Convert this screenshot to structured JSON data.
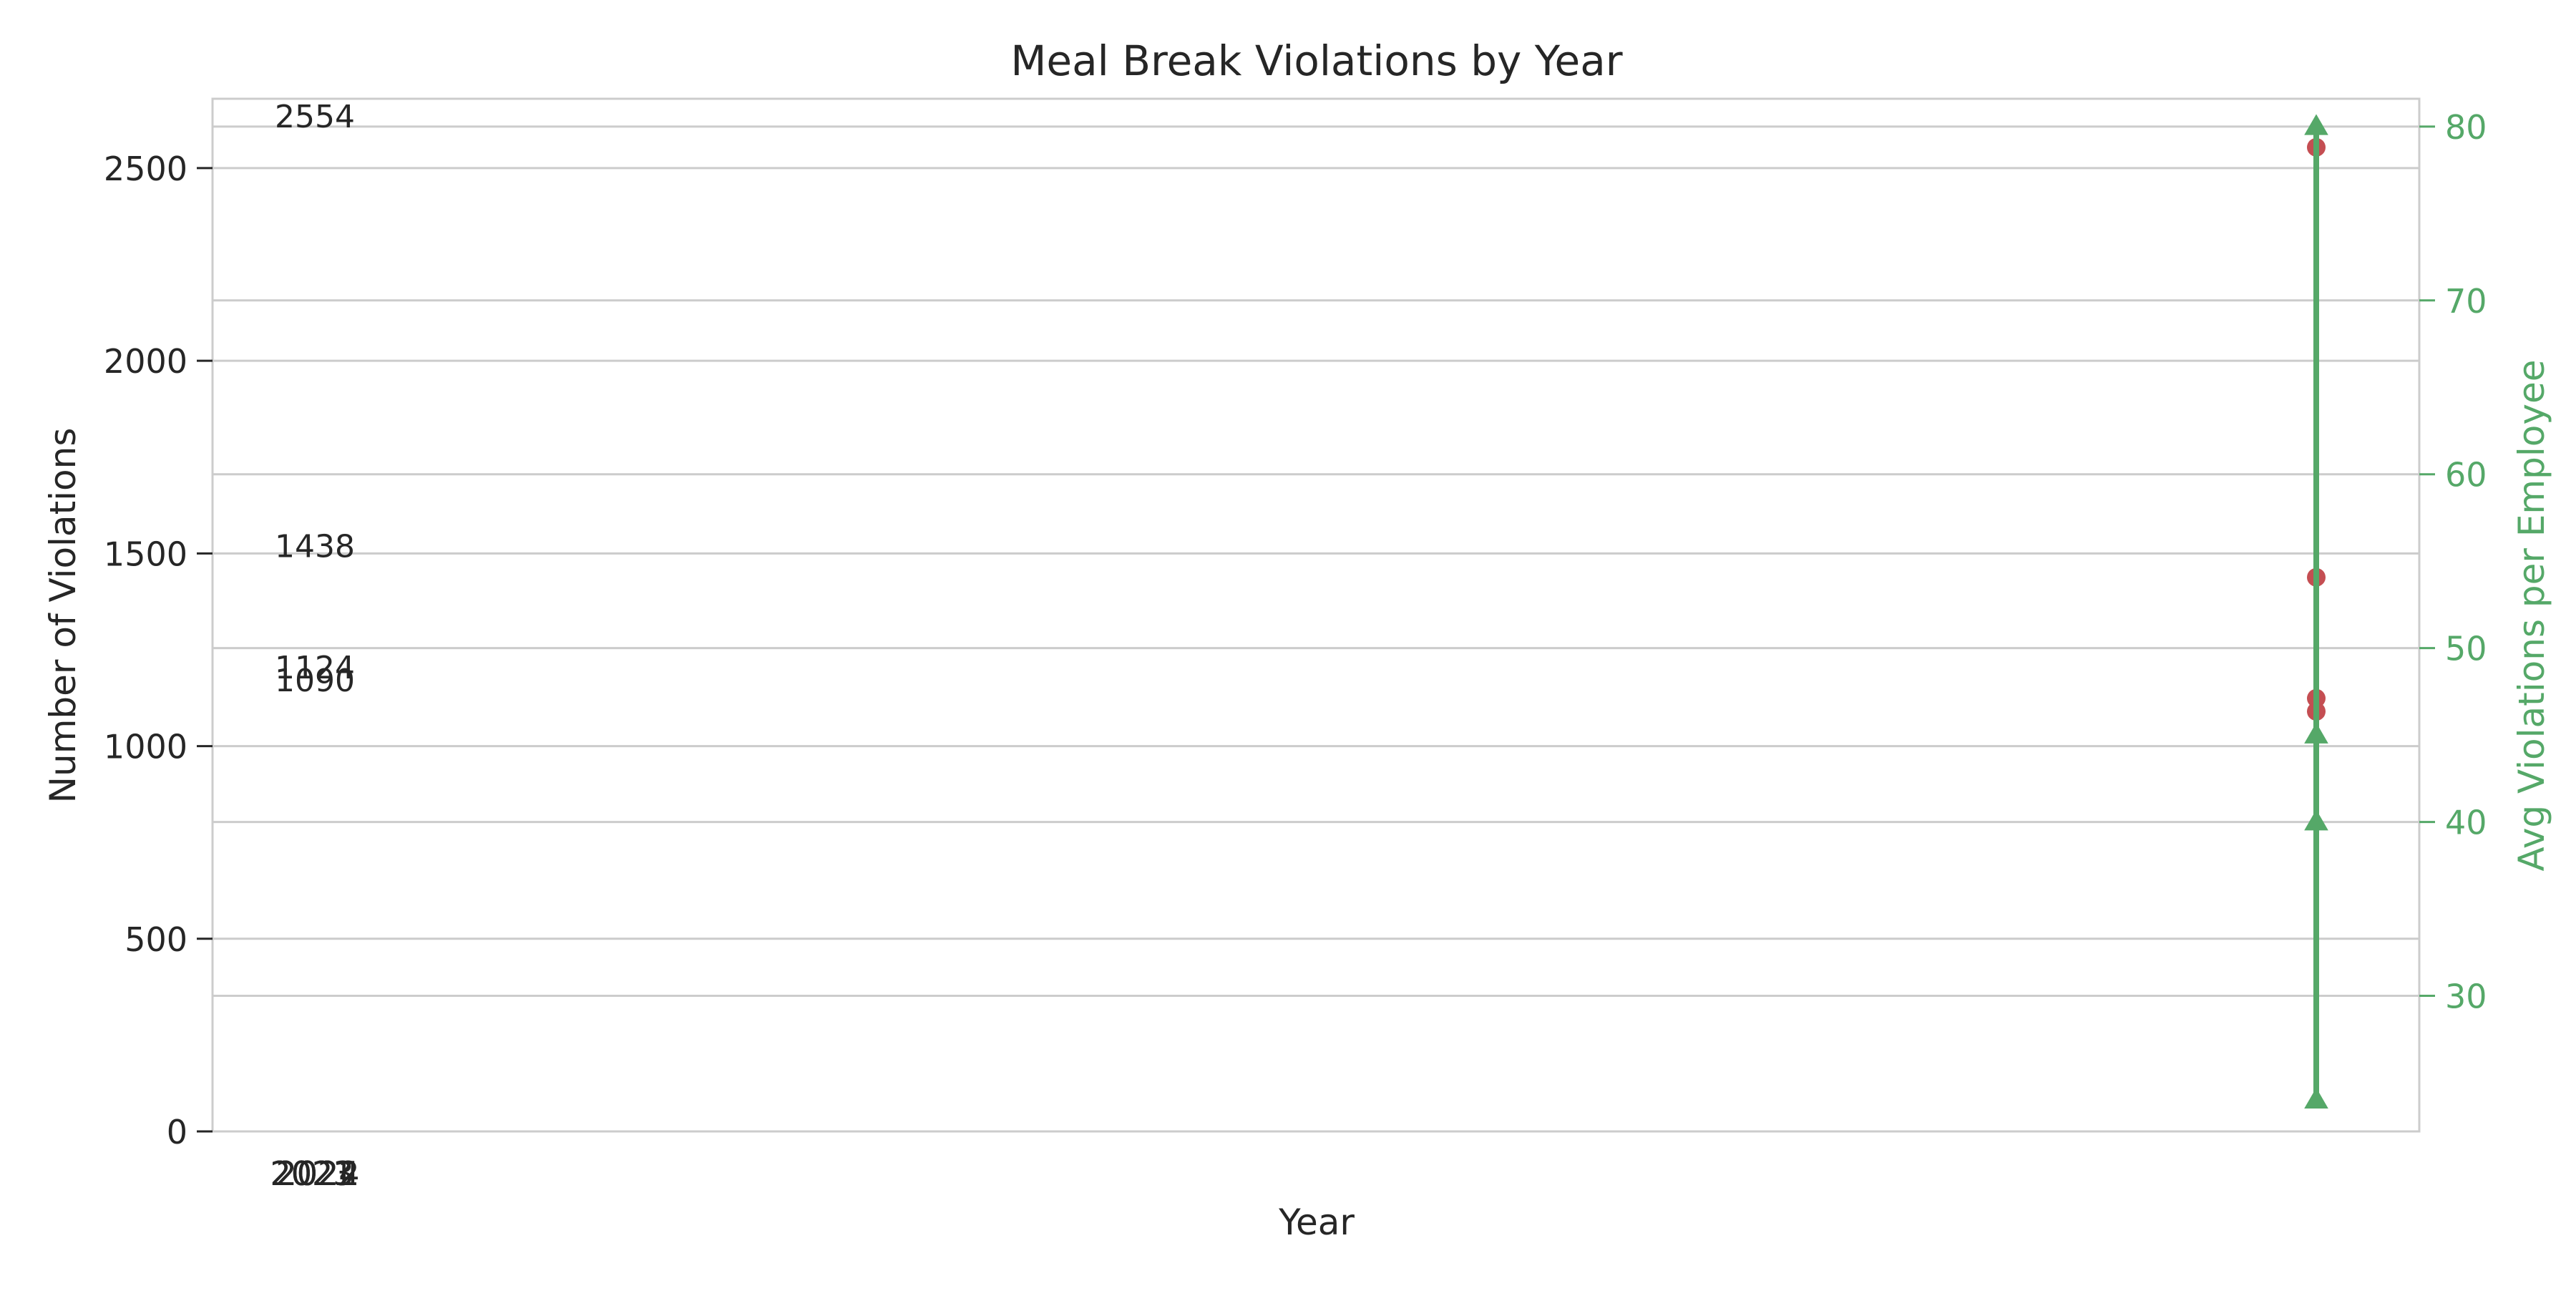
{
  "chart_data": {
    "type": "line",
    "title": "Meal Break Violations by Year",
    "xlabel": "Year",
    "ylabel": "Number of Violations",
    "y2label": "Avg Violations per Employee",
    "x_tick_labels": [
      "2021",
      "2022",
      "2023",
      "2024"
    ],
    "ylim": [
      0,
      2680
    ],
    "y_ticks": [
      0,
      500,
      1000,
      1500,
      2000,
      2500
    ],
    "y2lim": [
      22.2,
      81.6
    ],
    "y2_ticks": [
      30,
      40,
      50,
      60,
      70,
      80
    ],
    "grid": true,
    "series": [
      {
        "axis": "left",
        "marker": "circle",
        "color": "#c44e52",
        "x": [
          "2021",
          "2022",
          "2023",
          "2024"
        ],
        "values": [
          1124,
          1438,
          2554,
          1090
        ],
        "data_labels": [
          "1124",
          "1438",
          "2554",
          "1090"
        ]
      },
      {
        "axis": "right",
        "marker": "triangle",
        "color": "#55a868",
        "x": [
          "2021",
          "2022",
          "2023",
          "2024"
        ],
        "values": [
          24,
          40,
          80,
          45
        ]
      }
    ],
    "colors": {
      "axis_text": "#262626",
      "right_axis": "#55a868",
      "grid": "#cccccc",
      "frame": "#cccccc"
    }
  }
}
